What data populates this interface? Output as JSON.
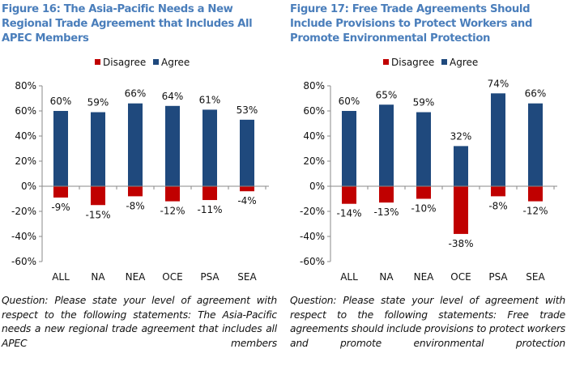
{
  "chart_data": [
    {
      "type": "bar",
      "title": "Figure 16: The Asia-Pacific Needs a New Regional Trade Agreement that Includes All APEC Members",
      "caption": "Question: Please state your level of agreement with respect to the following statements: The Asia-Pacific needs a new regional trade agreement that includes all APEC members",
      "categories": [
        "ALL",
        "NA",
        "NEA",
        "OCE",
        "PSA",
        "SEA"
      ],
      "series": [
        {
          "name": "Disagree",
          "color": "#c00000",
          "values": [
            -9,
            -15,
            -8,
            -12,
            -11,
            -4
          ],
          "labels": [
            "-9%",
            "-15%",
            "-8%",
            "-12%",
            "-11%",
            "-4%"
          ]
        },
        {
          "name": "Agree",
          "color": "#1f497d",
          "values": [
            60,
            59,
            66,
            64,
            61,
            53
          ],
          "labels": [
            "60%",
            "59%",
            "66%",
            "64%",
            "61%",
            "53%"
          ]
        }
      ],
      "yticks": [
        "80%",
        "60%",
        "40%",
        "20%",
        "0%",
        "-20%",
        "-40%",
        "-60%"
      ],
      "ylim": [
        -60,
        80
      ],
      "legend": "top",
      "grid": false
    },
    {
      "type": "bar",
      "title": "Figure 17: Free Trade Agreements Should Include Provisions to Protect Workers and Promote Environmental Protection",
      "caption": "Question: Please state your level of agreement with respect to the following statements: Free trade agreements should include provisions to protect workers and promote environmental protection",
      "categories": [
        "ALL",
        "NA",
        "NEA",
        "OCE",
        "PSA",
        "SEA"
      ],
      "series": [
        {
          "name": "Disagree",
          "color": "#c00000",
          "values": [
            -14,
            -13,
            -10,
            -38,
            -8,
            -12
          ],
          "labels": [
            "-14%",
            "-13%",
            "-10%",
            "-38%",
            "-8%",
            "-12%"
          ]
        },
        {
          "name": "Agree",
          "color": "#1f497d",
          "values": [
            60,
            65,
            59,
            32,
            74,
            66
          ],
          "labels": [
            "60%",
            "65%",
            "59%",
            "32%",
            "74%",
            "66%"
          ]
        }
      ],
      "yticks": [
        "80%",
        "60%",
        "40%",
        "20%",
        "0%",
        "-20%",
        "-40%",
        "-60%"
      ],
      "ylim": [
        -60,
        80
      ],
      "legend": "top",
      "grid": false
    }
  ]
}
